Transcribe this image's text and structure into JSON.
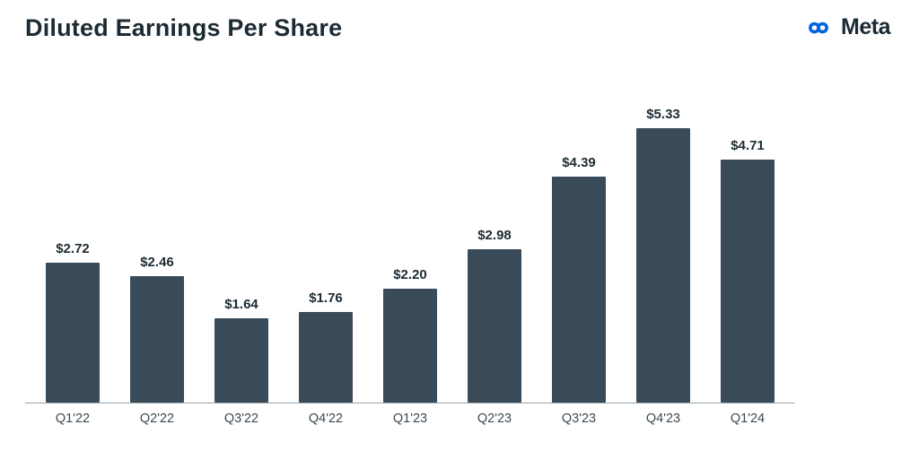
{
  "header": {
    "title": "Diluted Earnings Per Share",
    "brand": "Meta",
    "brand_color": "#0064E0"
  },
  "chart_data": {
    "type": "bar",
    "title": "Diluted Earnings Per Share",
    "categories": [
      "Q1'22",
      "Q2'22",
      "Q3'22",
      "Q4'22",
      "Q1'23",
      "Q2'23",
      "Q3'23",
      "Q4'23",
      "Q1'24"
    ],
    "values": [
      2.72,
      2.46,
      1.64,
      1.76,
      2.2,
      2.98,
      4.39,
      5.33,
      4.71
    ],
    "value_labels": [
      "$2.72",
      "$2.46",
      "$1.64",
      "$1.76",
      "$2.20",
      "$2.98",
      "$4.39",
      "$5.33",
      "$4.71"
    ],
    "xlabel": "",
    "ylabel": "",
    "ylim": [
      0,
      5.6
    ],
    "grid": "off",
    "legend": "none",
    "bar_color": "#394a59",
    "axis_line_color": "#98a2a8"
  }
}
